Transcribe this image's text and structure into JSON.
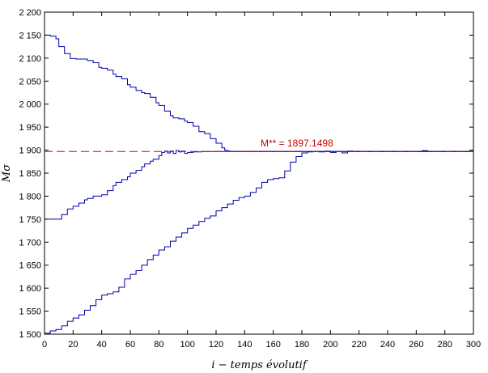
{
  "chart_data": {
    "type": "line",
    "xlabel": "i − temps évolutif",
    "ylabel": "Mσ",
    "xlim": [
      0,
      300
    ],
    "ylim": [
      1500,
      2200
    ],
    "x_ticks": [
      0,
      20,
      40,
      60,
      80,
      100,
      120,
      140,
      160,
      180,
      200,
      220,
      240,
      260,
      280,
      300
    ],
    "y_ticks": [
      1500,
      1550,
      1600,
      1650,
      1700,
      1750,
      1800,
      1850,
      1900,
      1950,
      2000,
      2050,
      2100,
      2150,
      2200
    ],
    "y_tick_labels": [
      "1 500",
      "1 550",
      "1 600",
      "1 650",
      "1 700",
      "1 750",
      "1 800",
      "1 850",
      "1 900",
      "1 950",
      "2 000",
      "2 050",
      "2 100",
      "2 150",
      "2 200"
    ],
    "grid": false,
    "reference_line": {
      "y": 1897.1498,
      "label": "M** = 1897.1498",
      "color": "#cc0000",
      "style": "dashed"
    },
    "series_color": "#0000aa",
    "series": [
      {
        "x": [
          0,
          4,
          8,
          10,
          14,
          18,
          22,
          26,
          30,
          34,
          38,
          40,
          44,
          48,
          50,
          54,
          58,
          60,
          64,
          68,
          70,
          74,
          78,
          80,
          84,
          88,
          90,
          94,
          98,
          100,
          104,
          108,
          112,
          116,
          120,
          124,
          126,
          128,
          130,
          135,
          140,
          150,
          170,
          200,
          230,
          260,
          280,
          300
        ],
        "y": [
          2150,
          2148,
          2142,
          2125,
          2110,
          2099,
          2098,
          2098,
          2095,
          2090,
          2080,
          2078,
          2074,
          2065,
          2060,
          2055,
          2042,
          2037,
          2030,
          2025,
          2023,
          2015,
          2003,
          1997,
          1985,
          1975,
          1970,
          1968,
          1963,
          1960,
          1952,
          1940,
          1936,
          1925,
          1915,
          1905,
          1900,
          1898,
          1897,
          1897,
          1897,
          1897,
          1897,
          1897,
          1897,
          1897,
          1897,
          1897
        ]
      },
      {
        "x": [
          0,
          10,
          12,
          16,
          20,
          24,
          28,
          30,
          34,
          38,
          40,
          44,
          48,
          50,
          54,
          58,
          60,
          64,
          68,
          70,
          74,
          76,
          80,
          82,
          84,
          86,
          88,
          90,
          92,
          94,
          96,
          98,
          100,
          104,
          110,
          120,
          140,
          170,
          200,
          230,
          260,
          280,
          300
        ],
        "y": [
          1750,
          1750,
          1760,
          1772,
          1778,
          1785,
          1792,
          1795,
          1800,
          1800,
          1803,
          1812,
          1823,
          1830,
          1836,
          1842,
          1850,
          1856,
          1864,
          1870,
          1876,
          1880,
          1888,
          1895,
          1898,
          1894,
          1898,
          1893,
          1899,
          1896,
          1898,
          1893,
          1895,
          1896,
          1897,
          1897,
          1897,
          1897,
          1897,
          1897,
          1897,
          1897,
          1897
        ]
      },
      {
        "x": [
          0,
          4,
          8,
          12,
          16,
          20,
          24,
          28,
          32,
          36,
          40,
          44,
          48,
          52,
          56,
          60,
          64,
          68,
          72,
          76,
          80,
          84,
          88,
          92,
          96,
          100,
          104,
          108,
          112,
          116,
          120,
          124,
          128,
          132,
          136,
          140,
          144,
          148,
          152,
          156,
          160,
          164,
          168,
          172,
          176,
          180,
          184,
          188,
          192,
          196,
          200,
          204,
          208,
          212,
          216,
          220,
          240,
          260,
          264,
          268,
          280,
          300
        ],
        "y": [
          1502,
          1507,
          1510,
          1518,
          1528,
          1535,
          1542,
          1552,
          1562,
          1575,
          1585,
          1588,
          1592,
          1602,
          1620,
          1630,
          1638,
          1650,
          1662,
          1672,
          1683,
          1690,
          1702,
          1711,
          1720,
          1730,
          1737,
          1745,
          1752,
          1757,
          1768,
          1775,
          1783,
          1791,
          1797,
          1800,
          1808,
          1818,
          1830,
          1836,
          1838,
          1840,
          1855,
          1874,
          1886,
          1894,
          1896,
          1897,
          1896,
          1898,
          1895,
          1897,
          1894,
          1898,
          1897,
          1897,
          1897,
          1897,
          1899,
          1897,
          1897,
          1897
        ]
      }
    ]
  }
}
